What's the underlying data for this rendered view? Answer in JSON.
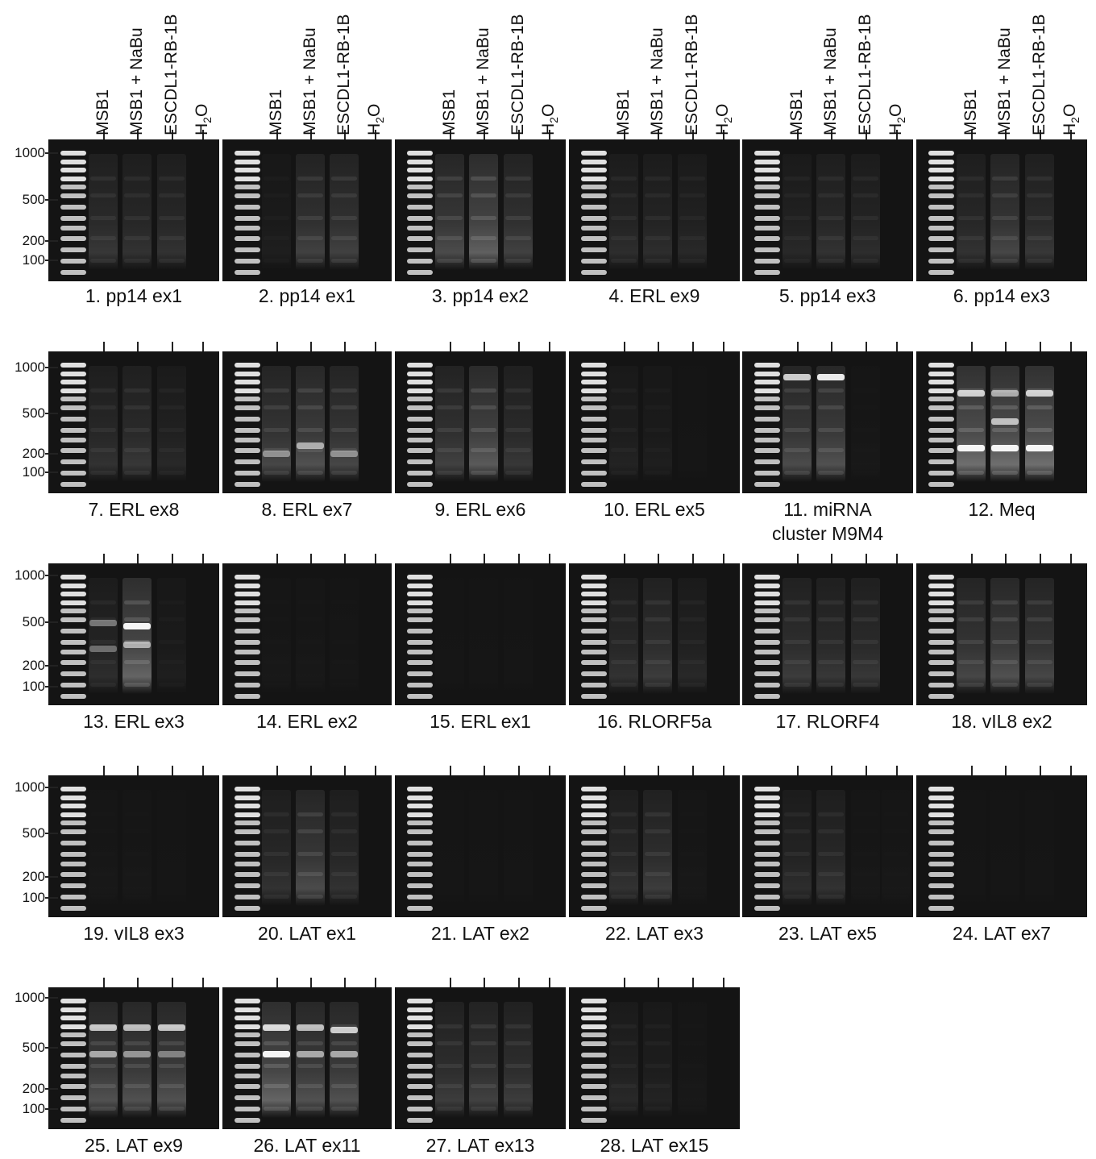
{
  "lane_labels": [
    "MSB1",
    "MSB1 + NaBu",
    "ESCDL1-RB-1B",
    "H2O"
  ],
  "h2o_label": {
    "main": "H",
    "sub": "2",
    "tail": "O"
  },
  "ladder_labels": [
    "1000",
    "500",
    "200",
    "100"
  ],
  "gels": [
    {
      "title": "1. pp14 ex1"
    },
    {
      "title": "2. pp14 ex1"
    },
    {
      "title": "3. pp14 ex2"
    },
    {
      "title": "4. ERL ex9"
    },
    {
      "title": "5. pp14 ex3"
    },
    {
      "title": "6. pp14 ex3"
    },
    {
      "title": "7. ERL ex8"
    },
    {
      "title": "8. ERL ex7"
    },
    {
      "title": "9. ERL ex6"
    },
    {
      "title": "10. ERL ex5"
    },
    {
      "title": "11. miRNA cluster M9M4"
    },
    {
      "title": "12. Meq"
    },
    {
      "title": "13. ERL ex3"
    },
    {
      "title": "14. ERL ex2"
    },
    {
      "title": "15. ERL ex1"
    },
    {
      "title": "16. RLORF5a"
    },
    {
      "title": "17. RLORF4"
    },
    {
      "title": "18. vIL8 ex2"
    },
    {
      "title": "19. vIL8 ex3"
    },
    {
      "title": "20. LAT ex1"
    },
    {
      "title": "21. LAT ex2"
    },
    {
      "title": "22. LAT ex3"
    },
    {
      "title": "23. LAT ex5"
    },
    {
      "title": "24. LAT ex7"
    },
    {
      "title": "25. LAT ex9"
    },
    {
      "title": "26. LAT ex11"
    },
    {
      "title": "27. LAT ex13"
    },
    {
      "title": "28. LAT ex15"
    }
  ]
}
